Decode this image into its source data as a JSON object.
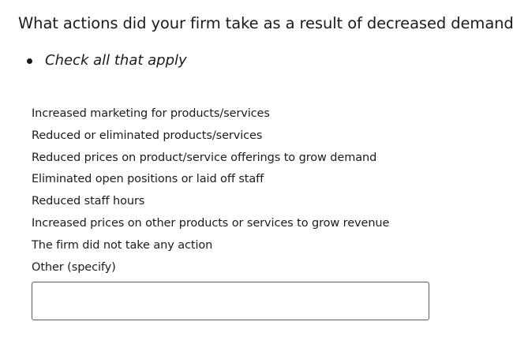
{
  "question": {
    "text": "What actions did your firm take as a result of decreased demand?"
  },
  "instructions": [
    "Check all that apply"
  ],
  "options": [
    {
      "label": "Increased marketing for products/services"
    },
    {
      "label": "Reduced or eliminated products/services"
    },
    {
      "label": "Reduced prices on product/service offerings to grow demand"
    },
    {
      "label": "Eliminated open positions or laid off staff"
    },
    {
      "label": "Reduced staff hours"
    },
    {
      "label": "Increased prices on other products or services to grow revenue"
    },
    {
      "label": "The firm did not take any action"
    },
    {
      "label": "Other (specify)"
    }
  ],
  "other_specify": {
    "value": "",
    "placeholder": ""
  }
}
